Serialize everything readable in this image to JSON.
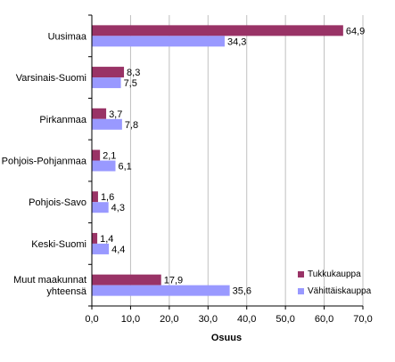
{
  "chart_data": {
    "type": "bar",
    "orientation": "horizontal",
    "categories": [
      "Uusimaa",
      "Varsinais-Suomi",
      "Pirkanmaa",
      "Pohjois-Pohjanmaa",
      "Pohjois-Savo",
      "Keski-Suomi",
      "Muut maakunnat yhteensä"
    ],
    "category_lines": [
      [
        "Uusimaa"
      ],
      [
        "Varsinais-Suomi"
      ],
      [
        "Pirkanmaa"
      ],
      [
        "Pohjois-Pohjanmaa"
      ],
      [
        "Pohjois-Savo"
      ],
      [
        "Keski-Suomi"
      ],
      [
        "Muut maakunnat",
        "yhteensä"
      ]
    ],
    "series": [
      {
        "name": "Tukkukauppa",
        "color": "#993366",
        "values": [
          64.9,
          8.3,
          3.7,
          2.1,
          1.6,
          1.4,
          17.9
        ],
        "labels": [
          "64,9",
          "8,3",
          "3,7",
          "2,1",
          "1,6",
          "1,4",
          "17,9"
        ]
      },
      {
        "name": "Vähittäiskauppa",
        "color": "#9999ff",
        "values": [
          34.3,
          7.5,
          7.8,
          6.1,
          4.3,
          4.4,
          35.6
        ],
        "labels": [
          "34,3",
          "7,5",
          "7,8",
          "6,1",
          "4,3",
          "4,4",
          "35,6"
        ]
      }
    ],
    "xlabel": "Osuus",
    "xlim": [
      0,
      70
    ],
    "x_ticks": [
      0,
      10,
      20,
      30,
      40,
      50,
      60,
      70
    ],
    "x_tick_labels": [
      "0,0",
      "10,0",
      "20,0",
      "30,0",
      "40,0",
      "50,0",
      "60,0",
      "70,0"
    ],
    "grid": true,
    "legend": "bottom-right"
  }
}
